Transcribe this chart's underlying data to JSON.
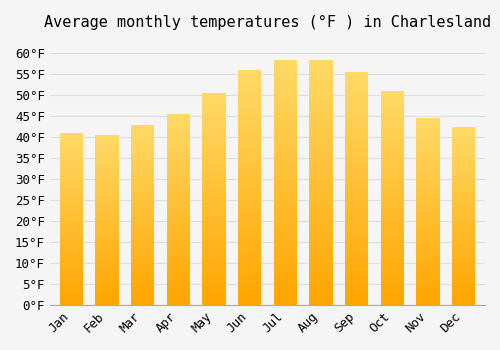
{
  "title": "Average monthly temperatures (°F ) in Charlesland",
  "months": [
    "Jan",
    "Feb",
    "Mar",
    "Apr",
    "May",
    "Jun",
    "Jul",
    "Aug",
    "Sep",
    "Oct",
    "Nov",
    "Dec"
  ],
  "values": [
    41.0,
    40.5,
    43.0,
    45.5,
    50.5,
    56.0,
    58.5,
    58.5,
    55.5,
    51.0,
    44.5,
    42.5
  ],
  "bar_color_bottom": "#FFA500",
  "bar_color_top": "#FFD966",
  "bar_edge_color": "#FFA500",
  "background_color": "#F5F5F5",
  "grid_color": "#DDDDDD",
  "ylim": [
    0,
    63
  ],
  "yticks": [
    0,
    5,
    10,
    15,
    20,
    25,
    30,
    35,
    40,
    45,
    50,
    55,
    60
  ],
  "title_fontsize": 11,
  "tick_fontsize": 9,
  "figsize": [
    5.0,
    3.5
  ],
  "dpi": 100
}
